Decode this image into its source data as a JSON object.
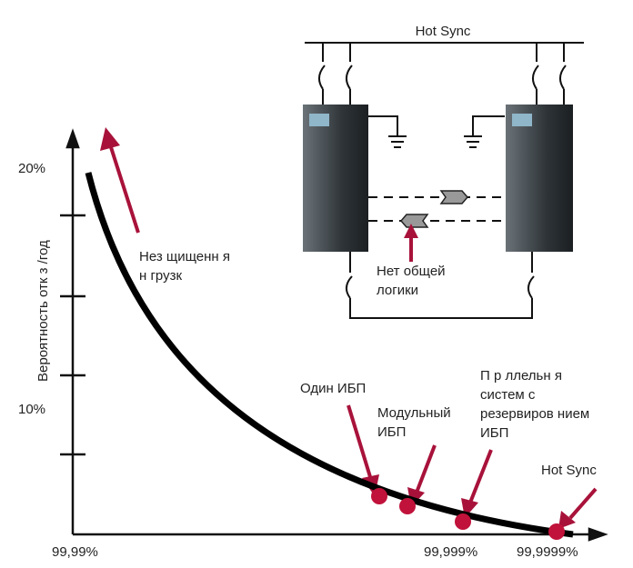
{
  "axes": {
    "y_label": "Вероятность отк з /год",
    "y_ticks": [
      "20%",
      "10%"
    ],
    "x_ticks": [
      "99,99%",
      "99,999%",
      "99,9999%"
    ]
  },
  "diagram": {
    "bus_label": "Hot Sync",
    "no_common_logic": [
      "Нет общей",
      "логики"
    ]
  },
  "annotations": {
    "unprotected": [
      "Нез щищенн я",
      "н грузк"
    ],
    "points": [
      {
        "label": [
          "Один ИБП"
        ]
      },
      {
        "label": [
          "Модульный",
          "ИБП"
        ]
      },
      {
        "label": [
          "П р ллельн я",
          "систем  с",
          "резервиров нием",
          "ИБП"
        ]
      },
      {
        "label": [
          "Hot Sync"
        ]
      }
    ]
  }
}
